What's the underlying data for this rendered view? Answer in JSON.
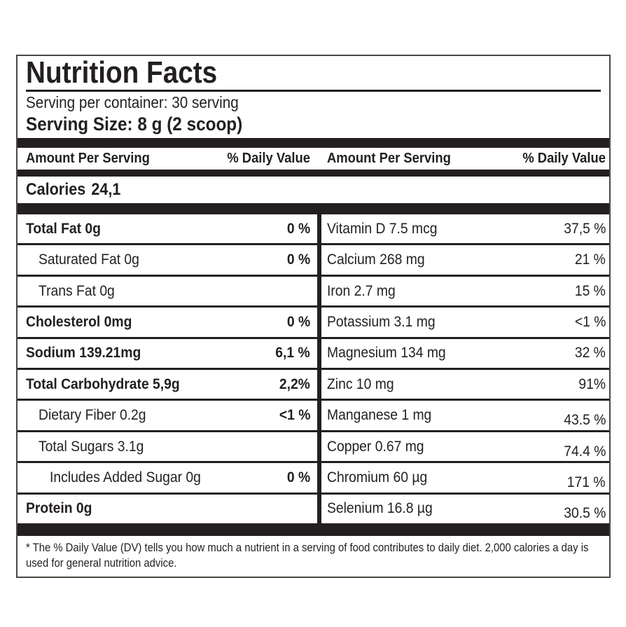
{
  "colors": {
    "ink": "#231f20",
    "border": "#4a4842",
    "background": "#ffffff"
  },
  "label": {
    "title": "Nutrition Facts",
    "serving_per_container": "Serving per container: 30 serving",
    "serving_size": "Serving Size: 8 g (2 scoop)",
    "column_header": {
      "amount": "Amount Per Serving",
      "daily_value": "% Daily Value"
    },
    "calories": {
      "label": "Calories",
      "value": "24,1"
    },
    "footnote": "* The % Daily Value (DV) tells you how much a nutrient in a serving of food contributes to daily diet. 2,000 calories a day is used for general nutrition advice."
  },
  "left_rows": [
    {
      "label": "Total Fat 0g",
      "dv": "0 %",
      "label_bold": true,
      "dv_bold": true,
      "indent": 0
    },
    {
      "label": "Saturated Fat 0g",
      "dv": "0 %",
      "label_bold": false,
      "dv_bold": true,
      "indent": 1
    },
    {
      "label": "Trans Fat 0g",
      "dv": "",
      "label_bold": false,
      "dv_bold": false,
      "indent": 1
    },
    {
      "label": "Cholesterol 0mg",
      "dv": "0 %",
      "label_bold": true,
      "dv_bold": true,
      "indent": 0
    },
    {
      "label": "Sodium 139.21mg",
      "dv": "6,1 %",
      "label_bold": true,
      "dv_bold": true,
      "indent": 0
    },
    {
      "label": "Total Carbohydrate 5,9g",
      "dv": "2,2%",
      "label_bold": true,
      "dv_bold": true,
      "indent": 0
    },
    {
      "label": "Dietary Fiber 0.2g",
      "dv": "<1 %",
      "label_bold": false,
      "dv_bold": true,
      "indent": 1
    },
    {
      "label": "Total Sugars 3.1g",
      "dv": "",
      "label_bold": false,
      "dv_bold": false,
      "indent": 1
    },
    {
      "label": "Includes Added Sugar 0g",
      "dv": "0 %",
      "label_bold": false,
      "dv_bold": true,
      "indent": 2
    },
    {
      "label": "Protein 0g",
      "dv": "",
      "label_bold": true,
      "dv_bold": false,
      "indent": 0
    }
  ],
  "right_rows": [
    {
      "label": "Vitamin D 7.5 mcg",
      "dv": "37,5 %",
      "dv_low": false
    },
    {
      "label": "Calcium 268 mg",
      "dv": "21 %",
      "dv_low": false
    },
    {
      "label": "Iron 2.7 mg",
      "dv": "15 %",
      "dv_low": false
    },
    {
      "label": "Potassium 3.1 mg",
      "dv": "<1 %",
      "dv_low": false
    },
    {
      "label": "Magnesium 134 mg",
      "dv": "32 %",
      "dv_low": false
    },
    {
      "label": "Zinc 10 mg",
      "dv": "91%",
      "dv_low": false
    },
    {
      "label": "Manganese 1 mg",
      "dv": "43.5 %",
      "dv_low": true
    },
    {
      "label": "Copper 0.67 mg",
      "dv": "74.4 %",
      "dv_low": true
    },
    {
      "label": "Chromium 60 µg",
      "dv": "171 %",
      "dv_low": true
    },
    {
      "label": "Selenium 16.8 µg",
      "dv": "30.5 %",
      "dv_low": true
    }
  ]
}
